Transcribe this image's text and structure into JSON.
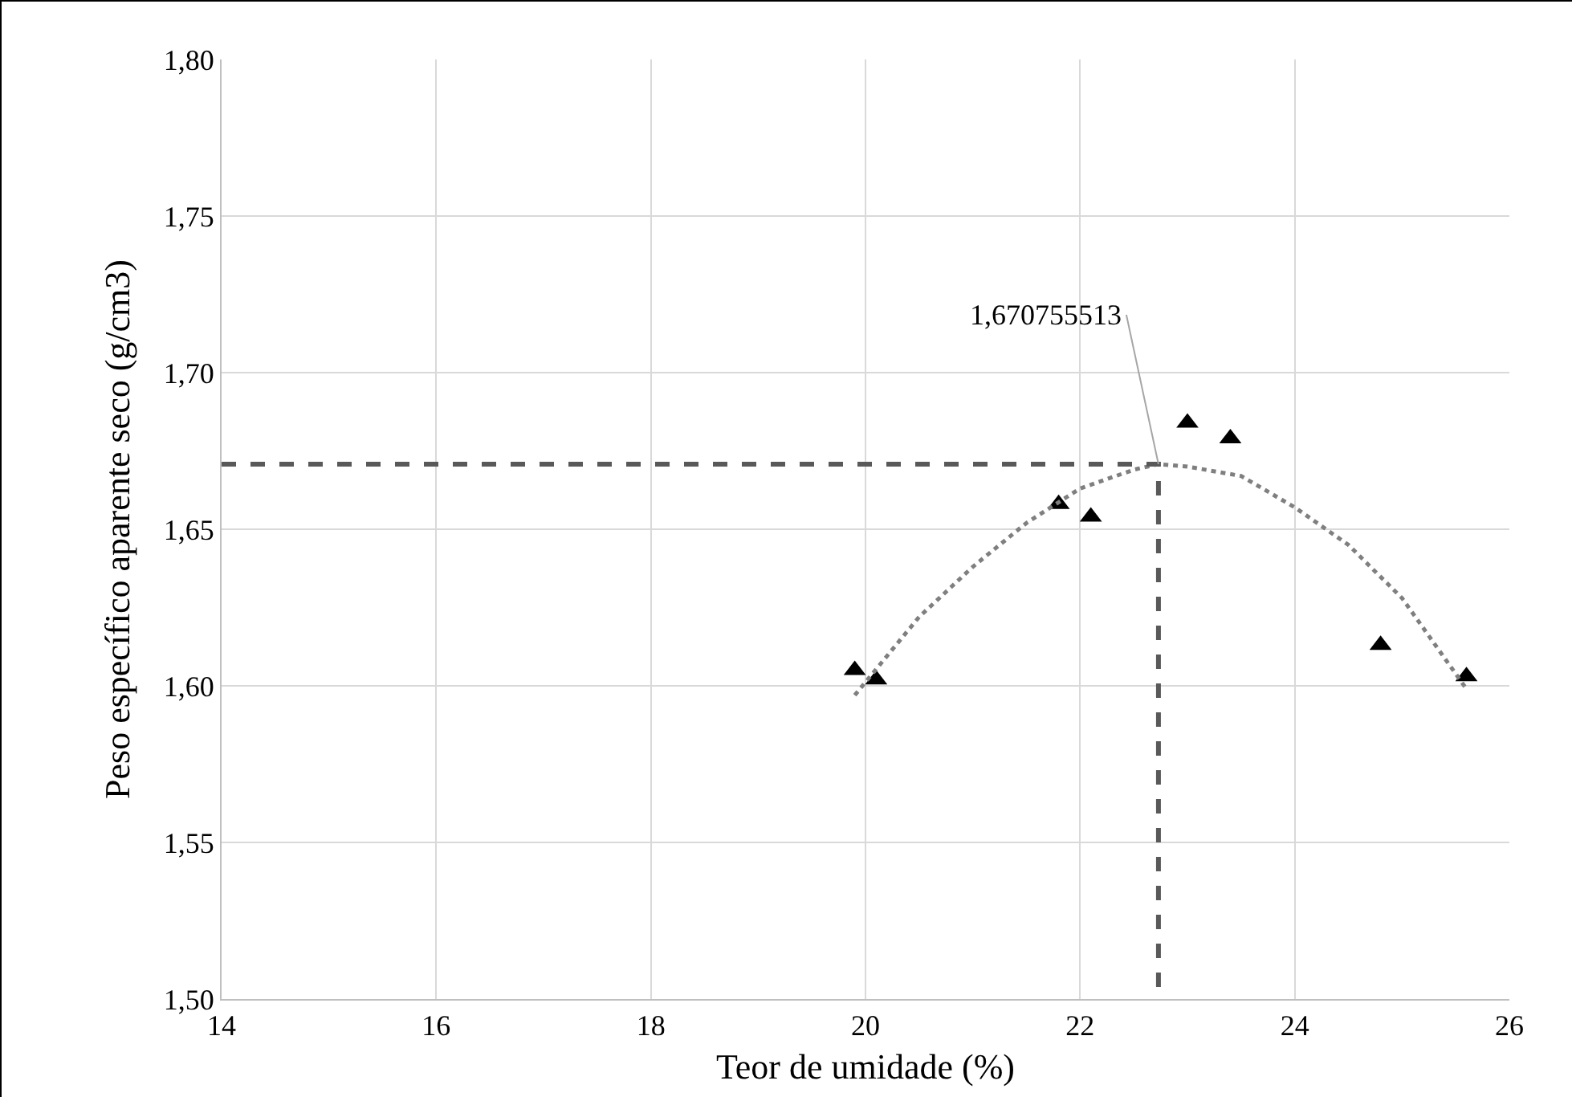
{
  "chart_data": {
    "type": "scatter",
    "xlabel": "Teor de umidade (%)",
    "ylabel": "Peso específico aparente seco (g/cm3)",
    "x": [
      19.9,
      20.1,
      21.8,
      22.1,
      23.0,
      23.4,
      24.8,
      25.6
    ],
    "series": [
      {
        "color": "#000000",
        "marker": "triangle",
        "values": [
          1.605,
          1.602,
          1.658,
          1.654,
          1.684,
          1.679,
          1.613,
          1.603
        ]
      },
      {
        "type": "line",
        "color": "#7f7f7f",
        "line_style": "dotted",
        "marker": "none",
        "x": [
          19.9,
          20.5,
          21,
          21.5,
          22,
          22.5,
          22.73,
          23,
          23.5,
          24,
          24.5,
          25,
          25.6
        ],
        "values": [
          1.597,
          1.622,
          1.638,
          1.652,
          1.663,
          1.669,
          1.6708,
          1.67,
          1.667,
          1.657,
          1.645,
          1.628,
          1.599
        ]
      },
      {
        "type": "line",
        "color": "#595959",
        "line_style": "dashed",
        "marker": "none",
        "x": [
          14,
          22.73,
          22.73
        ],
        "values": [
          1.6708,
          1.6708,
          1.5
        ]
      }
    ],
    "annotations": [
      {
        "text": "1,670755513",
        "x": 22.73,
        "y": 1.670755513
      }
    ],
    "xlim": [
      14,
      26
    ],
    "xticks": [
      14,
      16,
      18,
      20,
      22,
      24,
      26
    ],
    "ylim": [
      1.5,
      1.8
    ],
    "yticks": [
      {
        "value": 1.5,
        "label": "1,50"
      },
      {
        "value": 1.55,
        "label": "1,55"
      },
      {
        "value": 1.6,
        "label": "1,60"
      },
      {
        "value": 1.65,
        "label": "1,65"
      },
      {
        "value": 1.7,
        "label": "1,70"
      },
      {
        "value": 1.75,
        "label": "1,75"
      },
      {
        "value": 1.8,
        "label": "1,80"
      }
    ],
    "grid": true
  }
}
